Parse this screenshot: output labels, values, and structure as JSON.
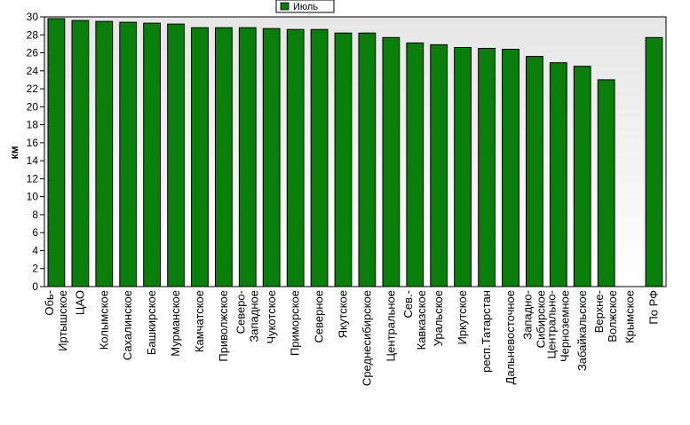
{
  "chart_data": {
    "type": "bar",
    "ylabel": "км",
    "ylim": [
      0,
      30
    ],
    "ytick_step": 2,
    "grid": false,
    "legend": {
      "position": "top-center",
      "entries": [
        "Июль"
      ]
    },
    "series": [
      {
        "name": "Июль",
        "color": "#0a7e0a",
        "values": [
          29.8,
          29.6,
          29.5,
          29.4,
          29.3,
          29.2,
          28.8,
          28.8,
          28.8,
          28.7,
          28.6,
          28.6,
          28.2,
          28.2,
          27.7,
          27.1,
          26.9,
          26.6,
          26.5,
          26.4,
          25.6,
          24.9,
          24.5,
          23.0,
          0,
          27.7
        ]
      }
    ],
    "categories": [
      [
        "Обь-",
        "Иртышское"
      ],
      [
        "ЦАО"
      ],
      [
        "Колымское"
      ],
      [
        "Сахалинское"
      ],
      [
        "Башкирское"
      ],
      [
        "Мурманское"
      ],
      [
        "Камчатское"
      ],
      [
        "Приволжское"
      ],
      [
        "Северо-",
        "Западное"
      ],
      [
        "Чукотское"
      ],
      [
        "Приморское"
      ],
      [
        "Северное"
      ],
      [
        "Якутское"
      ],
      [
        "Среднесибирское"
      ],
      [
        "Центральное"
      ],
      [
        "Сев.-",
        "Кавказское"
      ],
      [
        "Уральское"
      ],
      [
        "Иркутское"
      ],
      [
        "респ.Татарстан"
      ],
      [
        "Дальневосточное"
      ],
      [
        "Западно-",
        "Сибирское"
      ],
      [
        "Центрально-",
        "Черноземное"
      ],
      [
        "Забайкальское"
      ],
      [
        "Верхне-",
        "Волжское"
      ],
      [
        "Крымское"
      ],
      [
        "По РФ"
      ]
    ]
  }
}
